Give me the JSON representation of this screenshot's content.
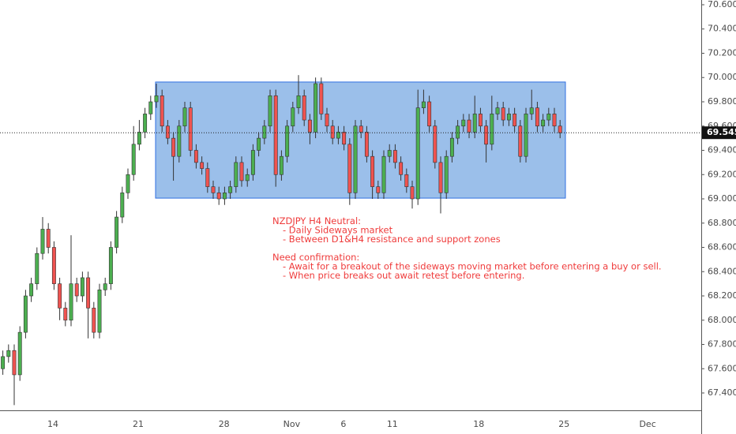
{
  "chart_data": {
    "type": "candlestick",
    "up_color": "#4caf50",
    "down_color": "#ef5350",
    "grid": false,
    "xlim": [
      -0.5,
      122.83
    ],
    "xticks": [
      {
        "value": 8.8,
        "label": "14"
      },
      {
        "value": 23.8,
        "label": "21"
      },
      {
        "value": 38.9,
        "label": "28"
      },
      {
        "value": 50.8,
        "label": "Nov"
      },
      {
        "value": 59.9,
        "label": "6"
      },
      {
        "value": 68.5,
        "label": "11"
      },
      {
        "value": 83.7,
        "label": "18"
      },
      {
        "value": 98.7,
        "label": "25"
      },
      {
        "value": 113.4,
        "label": "Dec"
      }
    ],
    "ylim": [
      67.257,
      70.639
    ],
    "yticks": [
      {
        "value": 70.6,
        "label": "70.600"
      },
      {
        "value": 70.4,
        "label": "70.400"
      },
      {
        "value": 70.2,
        "label": "70.200"
      },
      {
        "value": 70.0,
        "label": "70.000"
      },
      {
        "value": 69.8,
        "label": "69.800"
      },
      {
        "value": 69.6,
        "label": "69.600"
      },
      {
        "value": 69.4,
        "label": "69.400"
      },
      {
        "value": 69.2,
        "label": "69.200"
      },
      {
        "value": 69.0,
        "label": "69.000"
      },
      {
        "value": 68.8,
        "label": "68.800"
      },
      {
        "value": 68.6,
        "label": "68.600"
      },
      {
        "value": 68.4,
        "label": "68.400"
      },
      {
        "value": 68.2,
        "label": "68.200"
      },
      {
        "value": 68.0,
        "label": "68.000"
      },
      {
        "value": 67.8,
        "label": "67.800"
      },
      {
        "value": 67.6,
        "label": "67.600"
      },
      {
        "value": 67.4,
        "label": "67.400"
      }
    ],
    "last_price": 69.545,
    "zone": {
      "x": [
        26.86,
        98.94
      ],
      "y": [
        69.006,
        69.963
      ],
      "fill": "#8ab4e6",
      "stroke": "#2f6fe0"
    },
    "x": [
      0,
      1,
      2,
      3,
      4,
      5,
      6,
      7,
      8,
      9,
      10,
      11,
      12,
      13,
      14,
      15,
      16,
      17,
      18,
      19,
      20,
      21,
      22,
      23,
      24,
      25,
      26,
      27,
      28,
      29,
      30,
      31,
      32,
      33,
      34,
      35,
      36,
      37,
      38,
      39,
      40,
      41,
      42,
      43,
      44,
      45,
      46,
      47,
      48,
      49,
      50,
      51,
      52,
      53,
      54,
      55,
      56,
      57,
      58,
      59,
      60,
      61,
      62,
      63,
      64,
      65,
      66,
      67,
      68,
      69,
      70,
      71,
      72,
      73,
      74,
      75,
      76,
      77,
      78,
      79,
      80,
      81,
      82,
      83,
      84,
      85,
      86,
      87,
      88,
      89,
      90,
      91,
      92,
      93,
      94,
      95,
      96,
      97,
      98
    ],
    "open": [
      67.6,
      67.7,
      67.75,
      67.55,
      67.9,
      68.2,
      68.3,
      68.55,
      68.75,
      68.6,
      68.3,
      68.1,
      68.0,
      68.3,
      68.2,
      68.35,
      68.1,
      67.9,
      68.25,
      68.3,
      68.6,
      68.85,
      69.05,
      69.2,
      69.45,
      69.55,
      69.7,
      69.8,
      69.85,
      69.6,
      69.5,
      69.35,
      69.6,
      69.75,
      69.4,
      69.3,
      69.25,
      69.1,
      69.05,
      69.0,
      69.05,
      69.1,
      69.3,
      69.15,
      69.2,
      69.4,
      69.5,
      69.6,
      69.85,
      69.2,
      69.35,
      69.6,
      69.75,
      69.85,
      69.65,
      69.55,
      69.95,
      69.7,
      69.6,
      69.5,
      69.55,
      69.45,
      69.05,
      69.6,
      69.55,
      69.35,
      69.1,
      69.05,
      69.35,
      69.4,
      69.3,
      69.2,
      69.1,
      69.0,
      69.75,
      69.8,
      69.6,
      69.3,
      69.05,
      69.35,
      69.5,
      69.6,
      69.65,
      69.55,
      69.7,
      69.6,
      69.45,
      69.7,
      69.75,
      69.65,
      69.7,
      69.6,
      69.35,
      69.7,
      69.75,
      69.6,
      69.65,
      69.7,
      69.6
    ],
    "high": [
      67.75,
      67.8,
      67.8,
      67.95,
      68.25,
      68.35,
      68.6,
      68.85,
      68.8,
      68.65,
      68.35,
      68.15,
      68.7,
      68.35,
      68.4,
      68.4,
      68.15,
      68.3,
      68.35,
      68.65,
      68.9,
      69.1,
      69.25,
      69.6,
      69.65,
      69.75,
      69.85,
      69.95,
      69.9,
      69.65,
      69.55,
      69.65,
      69.8,
      69.8,
      69.45,
      69.35,
      69.3,
      69.15,
      69.1,
      69.1,
      69.15,
      69.35,
      69.35,
      69.25,
      69.45,
      69.55,
      69.65,
      69.9,
      69.9,
      69.4,
      69.65,
      69.8,
      70.02,
      69.9,
      69.7,
      70.0,
      70.0,
      69.75,
      69.65,
      69.6,
      69.6,
      69.5,
      69.65,
      69.65,
      69.6,
      69.4,
      69.15,
      69.4,
      69.45,
      69.45,
      69.35,
      69.25,
      69.15,
      69.9,
      69.9,
      69.85,
      69.65,
      69.35,
      69.4,
      69.55,
      69.65,
      69.7,
      69.7,
      69.85,
      69.75,
      69.65,
      69.85,
      69.8,
      69.8,
      69.75,
      69.75,
      69.65,
      69.75,
      69.9,
      69.8,
      69.7,
      69.75,
      69.75,
      69.65
    ],
    "low": [
      67.55,
      67.65,
      67.3,
      67.5,
      67.85,
      68.15,
      68.25,
      68.5,
      68.55,
      68.25,
      68.0,
      67.95,
      67.95,
      68.15,
      68.15,
      67.85,
      67.85,
      67.85,
      68.2,
      68.25,
      68.55,
      68.8,
      69.0,
      69.15,
      69.4,
      69.5,
      69.65,
      69.75,
      69.55,
      69.45,
      69.15,
      69.3,
      69.55,
      69.35,
      69.25,
      69.2,
      69.05,
      69.0,
      68.95,
      68.95,
      69.0,
      69.05,
      69.1,
      69.1,
      69.15,
      69.35,
      69.45,
      69.55,
      69.1,
      69.15,
      69.3,
      69.55,
      69.7,
      69.6,
      69.45,
      69.5,
      69.65,
      69.55,
      69.45,
      69.45,
      69.4,
      68.95,
      69.0,
      69.5,
      69.3,
      69.0,
      69.0,
      69.0,
      69.3,
      69.25,
      69.15,
      69.05,
      68.92,
      68.95,
      69.7,
      69.55,
      69.25,
      68.88,
      69.0,
      69.3,
      69.45,
      69.55,
      69.5,
      69.5,
      69.55,
      69.3,
      69.4,
      69.65,
      69.6,
      69.6,
      69.55,
      69.3,
      69.3,
      69.65,
      69.55,
      69.55,
      69.6,
      69.55,
      69.5
    ],
    "close": [
      67.7,
      67.75,
      67.55,
      67.9,
      68.2,
      68.3,
      68.55,
      68.75,
      68.6,
      68.3,
      68.1,
      68.0,
      68.3,
      68.2,
      68.35,
      68.1,
      67.9,
      68.25,
      68.3,
      68.6,
      68.85,
      69.05,
      69.2,
      69.45,
      69.55,
      69.7,
      69.8,
      69.85,
      69.6,
      69.5,
      69.35,
      69.6,
      69.75,
      69.4,
      69.3,
      69.25,
      69.1,
      69.05,
      69.0,
      69.05,
      69.1,
      69.3,
      69.15,
      69.2,
      69.4,
      69.5,
      69.6,
      69.85,
      69.2,
      69.35,
      69.6,
      69.75,
      69.85,
      69.65,
      69.55,
      69.95,
      69.7,
      69.6,
      69.5,
      69.55,
      69.45,
      69.05,
      69.6,
      69.55,
      69.35,
      69.1,
      69.05,
      69.35,
      69.4,
      69.3,
      69.2,
      69.1,
      69.0,
      69.75,
      69.8,
      69.6,
      69.3,
      69.05,
      69.35,
      69.5,
      69.6,
      69.65,
      69.55,
      69.7,
      69.6,
      69.45,
      69.7,
      69.75,
      69.65,
      69.7,
      69.6,
      69.35,
      69.7,
      69.75,
      69.6,
      69.65,
      69.7,
      69.6,
      69.545
    ],
    "annotation": [
      {
        "heading": "NZDJPY H4 Neutral:",
        "items": [
          "- Daily Sideways market",
          "- Between D1&H4 resistance and support zones"
        ]
      },
      {
        "heading": "Need confirmation:",
        "items": [
          "- Await for a breakout of the sideways moving market before entering a buy or sell.",
          "- When price breaks out await retest before entering."
        ]
      }
    ]
  }
}
